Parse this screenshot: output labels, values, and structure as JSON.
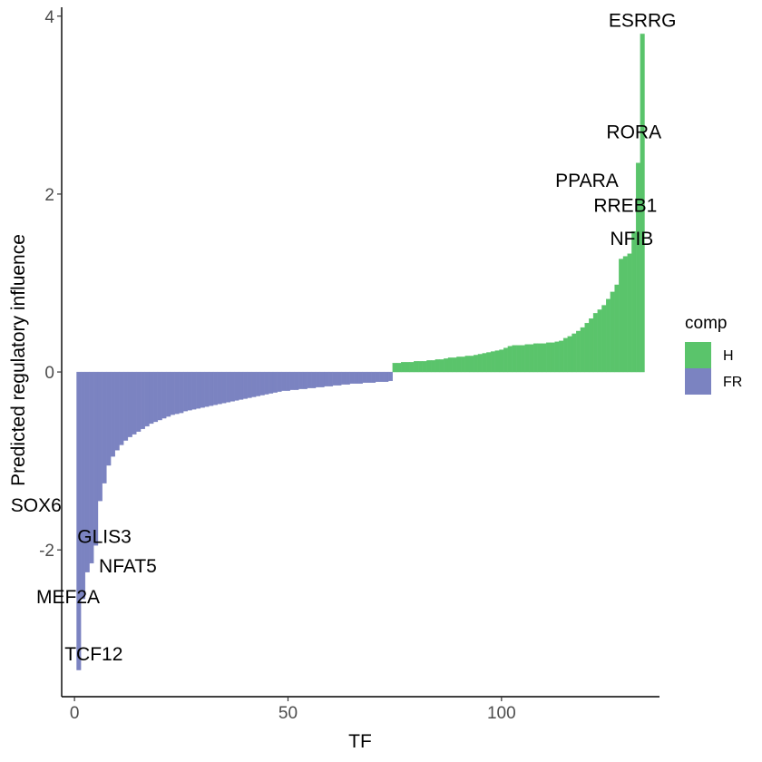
{
  "chart_data": {
    "type": "bar",
    "xlabel": "TF",
    "ylabel": "Predicted regulatory influence",
    "xlim": [
      -3,
      137
    ],
    "ylim": [
      -3.65,
      4.1
    ],
    "x_ticks": [
      0,
      50,
      100
    ],
    "y_ticks": [
      -2,
      0,
      2,
      4
    ],
    "grid": false,
    "legend": {
      "title": "comp",
      "placement": "right",
      "entries": [
        {
          "label": "H",
          "color": "#5ac46b"
        },
        {
          "label": "FR",
          "color": "#7b83c1"
        }
      ]
    },
    "series": [
      {
        "name": "FR",
        "color": "#7b83c1",
        "x": [
          1,
          2,
          3,
          4,
          5,
          6,
          7,
          8,
          9,
          10,
          11,
          12,
          13,
          14,
          15,
          16,
          17,
          18,
          19,
          20,
          21,
          22,
          23,
          24,
          25,
          26,
          27,
          28,
          29,
          30,
          31,
          32,
          33,
          34,
          35,
          36,
          37,
          38,
          39,
          40,
          41,
          42,
          43,
          44,
          45,
          46,
          47,
          48,
          49,
          50,
          51,
          52,
          53,
          54,
          55,
          56,
          57,
          58,
          59,
          60,
          61,
          62,
          63,
          64,
          65,
          66,
          67,
          68,
          69,
          70,
          71,
          72,
          73,
          74
        ],
        "values": [
          -3.35,
          -2.55,
          -2.25,
          -2.15,
          -1.95,
          -1.45,
          -1.25,
          -1.05,
          -0.95,
          -0.88,
          -0.82,
          -0.77,
          -0.73,
          -0.7,
          -0.67,
          -0.64,
          -0.61,
          -0.58,
          -0.56,
          -0.54,
          -0.52,
          -0.5,
          -0.48,
          -0.47,
          -0.46,
          -0.44,
          -0.43,
          -0.42,
          -0.41,
          -0.4,
          -0.39,
          -0.38,
          -0.37,
          -0.36,
          -0.35,
          -0.34,
          -0.33,
          -0.32,
          -0.31,
          -0.3,
          -0.29,
          -0.28,
          -0.27,
          -0.26,
          -0.25,
          -0.24,
          -0.23,
          -0.22,
          -0.21,
          -0.21,
          -0.2,
          -0.2,
          -0.19,
          -0.19,
          -0.18,
          -0.18,
          -0.17,
          -0.17,
          -0.16,
          -0.16,
          -0.15,
          -0.15,
          -0.14,
          -0.14,
          -0.13,
          -0.13,
          -0.13,
          -0.12,
          -0.12,
          -0.12,
          -0.11,
          -0.11,
          -0.11,
          -0.1
        ]
      },
      {
        "name": "H",
        "color": "#5ac46b",
        "x": [
          75,
          76,
          77,
          78,
          79,
          80,
          81,
          82,
          83,
          84,
          85,
          86,
          87,
          88,
          89,
          90,
          91,
          92,
          93,
          94,
          95,
          96,
          97,
          98,
          99,
          100,
          101,
          102,
          103,
          104,
          105,
          106,
          107,
          108,
          109,
          110,
          111,
          112,
          113,
          114,
          115,
          116,
          117,
          118,
          119,
          120,
          121,
          122,
          123,
          124,
          125,
          126,
          127,
          128,
          129,
          130,
          131,
          132,
          133
        ],
        "values": [
          0.1,
          0.1,
          0.11,
          0.11,
          0.11,
          0.12,
          0.12,
          0.12,
          0.13,
          0.13,
          0.14,
          0.14,
          0.15,
          0.16,
          0.16,
          0.17,
          0.17,
          0.18,
          0.18,
          0.19,
          0.2,
          0.21,
          0.22,
          0.23,
          0.24,
          0.25,
          0.27,
          0.29,
          0.3,
          0.3,
          0.3,
          0.31,
          0.31,
          0.32,
          0.32,
          0.32,
          0.33,
          0.33,
          0.34,
          0.35,
          0.38,
          0.4,
          0.43,
          0.46,
          0.5,
          0.55,
          0.6,
          0.66,
          0.7,
          0.75,
          0.82,
          0.9,
          0.98,
          1.27,
          1.3,
          1.33,
          1.58,
          2.35,
          3.8
        ]
      }
    ],
    "annotations": [
      {
        "label": "ESRRG",
        "x": 133,
        "y": 3.95
      },
      {
        "label": "RORA",
        "x": 131,
        "y": 2.7
      },
      {
        "label": "PPARA",
        "x": 120,
        "y": 2.15
      },
      {
        "label": "RREB1",
        "x": 129,
        "y": 1.87
      },
      {
        "label": "NFIB",
        "x": 130.5,
        "y": 1.5
      },
      {
        "label": "SOX6",
        "x": -9,
        "y": -1.5
      },
      {
        "label": "GLIS3",
        "x": 7,
        "y": -1.85
      },
      {
        "label": "NFAT5",
        "x": 12.5,
        "y": -2.18
      },
      {
        "label": "MEF2A",
        "x": -1.5,
        "y": -2.53
      },
      {
        "label": "TCF12",
        "x": 4.5,
        "y": -3.17
      }
    ]
  }
}
